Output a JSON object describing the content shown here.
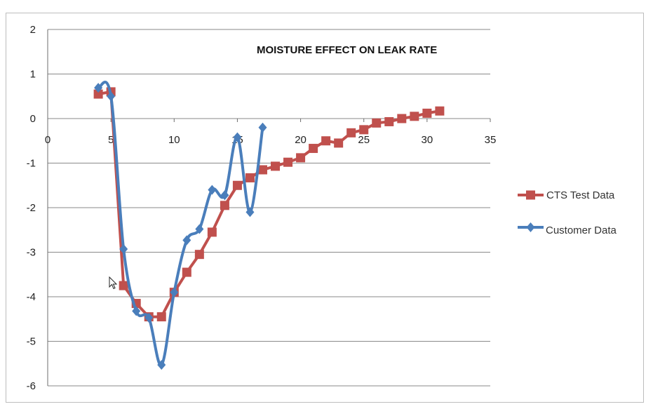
{
  "chart_data": {
    "type": "line",
    "title": "MOISTURE EFFECT ON LEAK RATE",
    "xlabel": "",
    "ylabel": "",
    "xlim": [
      0,
      35
    ],
    "ylim": [
      -6,
      2
    ],
    "x_ticks": [
      0,
      5,
      10,
      15,
      20,
      25,
      30,
      35
    ],
    "y_ticks": [
      2,
      1,
      0,
      -1,
      -2,
      -3,
      -4,
      -5,
      -6
    ],
    "grid": "horizontal",
    "legend_position": "right",
    "series": [
      {
        "name": "CTS Test Data",
        "color": "#c0504d",
        "marker": "square",
        "smooth": false,
        "points": [
          [
            4,
            0.55
          ],
          [
            5,
            0.6
          ],
          [
            6,
            -3.75
          ],
          [
            7,
            -4.15
          ],
          [
            8,
            -4.45
          ],
          [
            9,
            -4.45
          ],
          [
            10,
            -3.9
          ],
          [
            11,
            -3.45
          ],
          [
            12,
            -3.05
          ],
          [
            13,
            -2.55
          ],
          [
            14,
            -1.95
          ],
          [
            15,
            -1.5
          ],
          [
            16,
            -1.33
          ],
          [
            17,
            -1.15
          ],
          [
            18,
            -1.07
          ],
          [
            19,
            -0.98
          ],
          [
            20,
            -0.88
          ],
          [
            21,
            -0.67
          ],
          [
            22,
            -0.5
          ],
          [
            23,
            -0.55
          ],
          [
            24,
            -0.32
          ],
          [
            25,
            -0.25
          ],
          [
            26,
            -0.1
          ],
          [
            27,
            -0.07
          ],
          [
            28,
            0.0
          ],
          [
            29,
            0.05
          ],
          [
            30,
            0.12
          ],
          [
            31,
            0.17
          ]
        ]
      },
      {
        "name": "Customer Data",
        "color": "#4a7ebb",
        "marker": "diamond",
        "smooth": true,
        "points": [
          [
            4,
            0.69
          ],
          [
            5,
            0.5
          ],
          [
            6,
            -2.93
          ],
          [
            7,
            -4.32
          ],
          [
            8,
            -4.47
          ],
          [
            9,
            -5.53
          ],
          [
            10,
            -3.9
          ],
          [
            11,
            -2.73
          ],
          [
            12,
            -2.48
          ],
          [
            13,
            -1.6
          ],
          [
            14,
            -1.72
          ],
          [
            15,
            -0.42
          ],
          [
            16,
            -2.1
          ],
          [
            17,
            -0.2
          ]
        ]
      }
    ]
  },
  "icons": {
    "cursor": "mouse-pointer-icon"
  }
}
